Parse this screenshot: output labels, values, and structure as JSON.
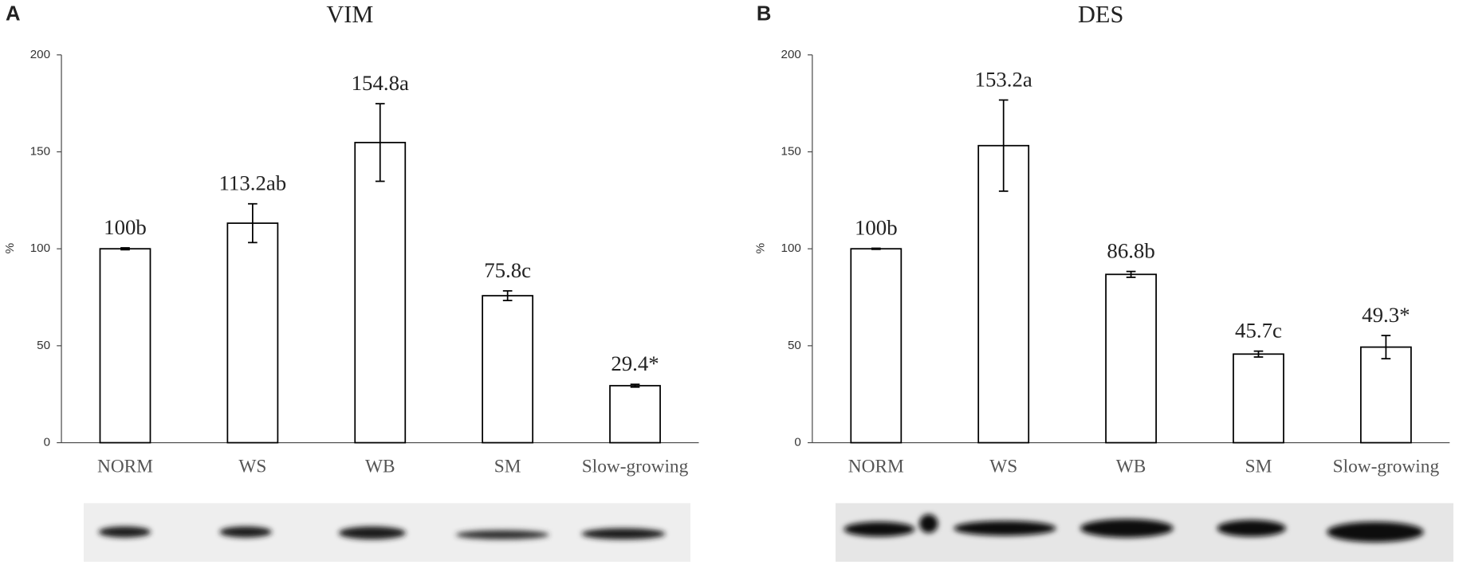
{
  "chart_data": [
    {
      "type": "bar",
      "panel_label": "A",
      "title": "VIM",
      "y_label": "%",
      "categories": [
        "NORM",
        "WS",
        "WB",
        "SM",
        "Slow-growing"
      ],
      "values": [
        100,
        113.2,
        154.8,
        75.8,
        29.4
      ],
      "errors": [
        0.5,
        10,
        20,
        2.5,
        0.7
      ],
      "value_labels": [
        "100b",
        "113.2ab",
        "154.8a",
        "75.8c",
        "29.4*"
      ],
      "color": "#ffffff",
      "ylim": [
        0,
        200
      ],
      "yticks": [
        0,
        50,
        100,
        150,
        200
      ],
      "grid": false
    },
    {
      "type": "bar",
      "panel_label": "B",
      "title": "DES",
      "y_label": "%",
      "categories": [
        "NORM",
        "WS",
        "WB",
        "SM",
        "Slow-growing"
      ],
      "values": [
        100,
        153.2,
        86.8,
        45.7,
        49.3
      ],
      "errors": [
        0.3,
        23.5,
        1.5,
        1.5,
        6
      ],
      "value_labels": [
        "100b",
        "153.2a",
        "86.8b",
        "45.7c",
        "49.3*"
      ],
      "color": "#ffffff",
      "ylim": [
        0,
        200
      ],
      "yticks": [
        0,
        50,
        100,
        150,
        200
      ],
      "grid": false
    }
  ]
}
